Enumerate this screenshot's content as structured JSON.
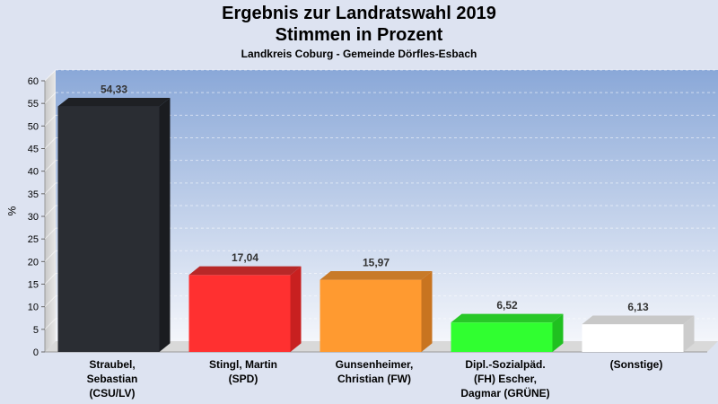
{
  "title_line1": "Ergebnis zur Landratswahl 2019",
  "title_line2": "Stimmen in Prozent",
  "subtitle": "Landkreis Coburg - Gemeinde Dörfles-Esbach",
  "chart_data": {
    "type": "bar",
    "title": "Ergebnis zur Landratswahl 2019 Stimmen in Prozent",
    "subtitle": "Landkreis Coburg - Gemeinde Dörfles-Esbach",
    "xlabel": "",
    "ylabel": "%",
    "ylim": [
      0,
      60
    ],
    "yticks": [
      0,
      5,
      10,
      15,
      20,
      25,
      30,
      35,
      40,
      45,
      50,
      55,
      60
    ],
    "grid": true,
    "categories": [
      [
        "Straubel,",
        "Sebastian",
        "(CSU/LV)"
      ],
      [
        "Stingl, Martin",
        "(SPD)"
      ],
      [
        "Gunsenheimer,",
        "Christian (FW)"
      ],
      [
        "Dipl.-Sozialpäd.",
        "(FH) Escher,",
        "Dagmar (GRÜNE)"
      ],
      [
        "(Sonstige)"
      ]
    ],
    "values": [
      54.33,
      17.04,
      15.97,
      6.52,
      6.13
    ],
    "value_labels": [
      "54,33",
      "17,04",
      "15,97",
      "6,52",
      "6,13"
    ],
    "colors": [
      "#2a2d33",
      "#ff3030",
      "#ff9a30",
      "#30ff30",
      "#ffffff"
    ],
    "side_colors": [
      "#1a1c20",
      "#c82020",
      "#c87420",
      "#20c020",
      "#cccccc"
    ],
    "top_colors": [
      "#1e2024",
      "#b82828",
      "#c87a28",
      "#28c828",
      "#c8c8c8"
    ]
  }
}
